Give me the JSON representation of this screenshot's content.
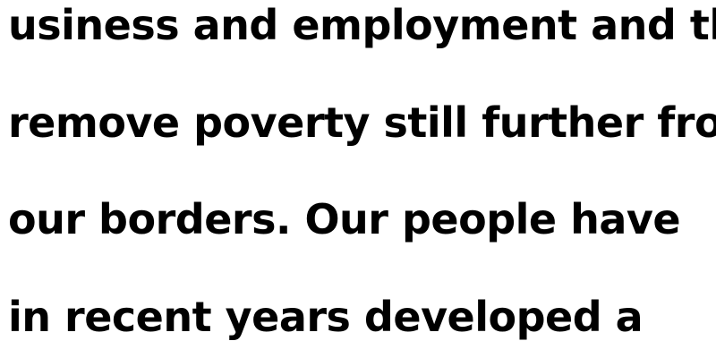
{
  "text_lines": [
    "usiness and employment and the",
    "remove poverty still further from",
    "our borders. Our people have",
    "in recent years developed a"
  ]
}
